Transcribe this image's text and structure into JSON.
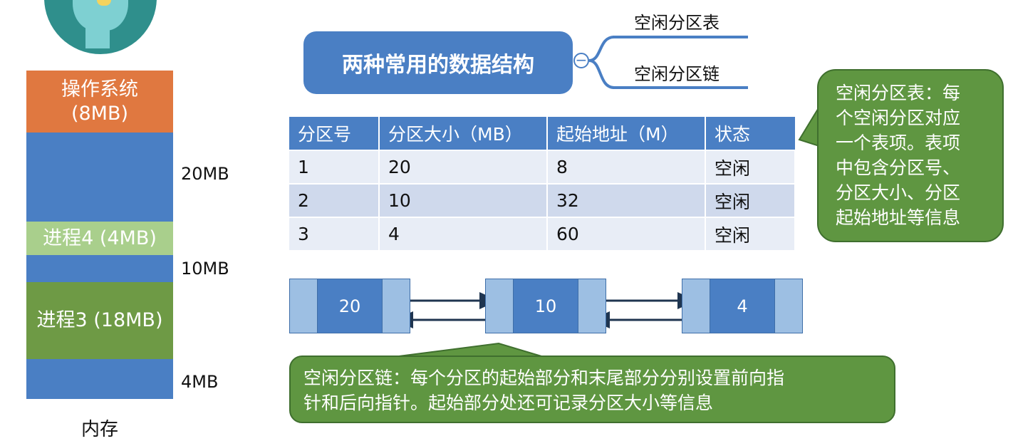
{
  "memory": {
    "blocks": [
      {
        "label": "操作系统",
        "sub": "(8MB)",
        "color": "#e07840",
        "type": "used"
      },
      {
        "label": "",
        "sub": "",
        "color": "#4a7fc4",
        "type": "free"
      },
      {
        "label": "进程4 (4MB)",
        "sub": "",
        "color": "#a9cf8c",
        "type": "used"
      },
      {
        "label": "",
        "sub": "",
        "color": "#4a7fc4",
        "type": "free"
      },
      {
        "label": "进程3 (18MB)",
        "sub": "",
        "color": "#6e9a45",
        "type": "used"
      },
      {
        "label": "",
        "sub": "",
        "color": "#4a7fc4",
        "type": "free"
      }
    ],
    "free_sizes": [
      "20MB",
      "10MB",
      "4MB"
    ],
    "caption": "内存"
  },
  "mind_map": {
    "title": "两种常用的数据结构",
    "collapse_symbol": "−",
    "branches": [
      "空闲分区表",
      "空闲分区链"
    ]
  },
  "partition_table": {
    "headers": [
      "分区号",
      "分区大小（MB）",
      "起始地址（M）",
      "状态"
    ],
    "rows": [
      [
        "1",
        "20",
        "8",
        "空闲"
      ],
      [
        "2",
        "10",
        "32",
        "空闲"
      ],
      [
        "3",
        "4",
        "60",
        "空闲"
      ]
    ]
  },
  "table_note": [
    "空闲分区表：每",
    "个空闲分区对应",
    "一个表项。表项",
    "中包含分区号、",
    "分区大小、分区",
    "起始地址等信息"
  ],
  "linked_list": {
    "nodes": [
      "20",
      "10",
      "4"
    ]
  },
  "chain_note": [
    "空闲分区链：每个分区的起始部分和末尾部分分别设置前向指",
    "针和后向指针。起始部分处还可记录分区大小等信息"
  ],
  "colors": {
    "blue": "#4a7fc4",
    "light_blue": "#9dbfe3",
    "green": "#5f9641",
    "orange": "#e07840",
    "arrow": "#1f3550"
  }
}
